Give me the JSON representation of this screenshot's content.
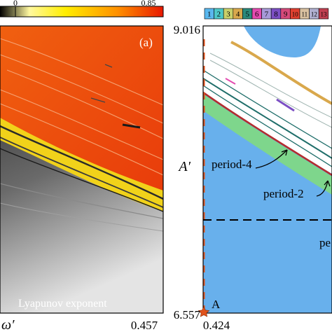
{
  "chart_data": [
    {
      "type": "heatmap",
      "panel_label": "(a)",
      "annotation": "Lyapunov exponent",
      "xlabel": "ω′",
      "x_ticks": [
        {
          "value": 0.457,
          "label": "0.457"
        }
      ],
      "colorbar": {
        "ticks": [
          {
            "value": 0,
            "label": "0"
          },
          {
            "value": 0.85,
            "label": "0.85"
          }
        ],
        "range": [
          -0.2,
          0.85
        ],
        "stops": [
          "#000000",
          "#fff8a0",
          "#ffee00",
          "#ff9000",
          "#e81800"
        ]
      }
    },
    {
      "type": "heatmap",
      "ylabel": "A′",
      "y_ticks": [
        {
          "value": 9.016,
          "label": "9.016"
        },
        {
          "value": 6.557,
          "label": "6.557"
        }
      ],
      "x_ticks": [
        {
          "value": 0.424,
          "label": "0.424"
        }
      ],
      "ylim": [
        6.557,
        9.016
      ],
      "legend": {
        "labels": [
          "1",
          "2",
          "3",
          "4",
          "5",
          "6",
          "7",
          "8",
          "9",
          "10",
          "11",
          "12",
          "13"
        ],
        "colors": [
          "#59b7ee",
          "#4dc8c8",
          "#c9d06a",
          "#d9a84c",
          "#2b8a7c",
          "#e34bb0",
          "#a79ad8",
          "#7c4fc4",
          "#d64a7a",
          "#e04030",
          "#d9c0a0",
          "#b0b0d0",
          "#c04050"
        ]
      },
      "annotations": [
        {
          "text": "period-4",
          "points_to": "dark red line"
        },
        {
          "text": "period-2",
          "points_to": "green band"
        },
        {
          "text": "pe"
        },
        {
          "text": "A",
          "marker": "star"
        }
      ],
      "colors": {
        "period1": "#68b0ec",
        "period2": "#7ed68c",
        "period4": "#b32e2e",
        "chaos": "#ffffff",
        "orbit_lines": "#1f6e6a"
      }
    }
  ]
}
